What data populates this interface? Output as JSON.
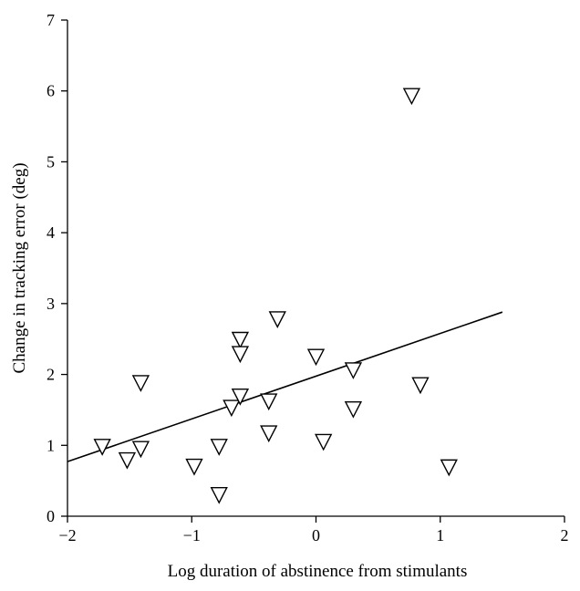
{
  "chart_data": {
    "type": "scatter",
    "title": "",
    "xlabel": "Log duration of abstinence from stimulants",
    "ylabel": "Change in tracking error (deg)",
    "xlim": [
      -2,
      2
    ],
    "ylim": [
      0,
      7
    ],
    "xticks": [
      -2,
      -1,
      0,
      1,
      2
    ],
    "xtick_labels": [
      "−2",
      "−1",
      "0",
      "1",
      "2"
    ],
    "yticks": [
      0,
      1,
      2,
      3,
      4,
      5,
      6,
      7
    ],
    "ytick_labels": [
      "0",
      "1",
      "2",
      "3",
      "4",
      "5",
      "6",
      "7"
    ],
    "grid": false,
    "marker": "down-triangle",
    "points": [
      {
        "x": -1.72,
        "y": 0.98
      },
      {
        "x": -1.52,
        "y": 0.79
      },
      {
        "x": -1.41,
        "y": 0.95
      },
      {
        "x": -1.41,
        "y": 1.88
      },
      {
        "x": -0.98,
        "y": 0.7
      },
      {
        "x": -0.78,
        "y": 0.98
      },
      {
        "x": -0.78,
        "y": 0.3
      },
      {
        "x": -0.68,
        "y": 1.53
      },
      {
        "x": -0.61,
        "y": 2.49
      },
      {
        "x": -0.61,
        "y": 2.29
      },
      {
        "x": -0.61,
        "y": 1.69
      },
      {
        "x": -0.38,
        "y": 1.62
      },
      {
        "x": -0.38,
        "y": 1.17
      },
      {
        "x": -0.31,
        "y": 2.78
      },
      {
        "x": 0.0,
        "y": 2.25
      },
      {
        "x": 0.06,
        "y": 1.05
      },
      {
        "x": 0.3,
        "y": 2.06
      },
      {
        "x": 0.3,
        "y": 1.51
      },
      {
        "x": 0.77,
        "y": 5.93
      },
      {
        "x": 0.84,
        "y": 1.85
      },
      {
        "x": 1.07,
        "y": 0.69
      }
    ],
    "fit_line": {
      "x": [
        -2,
        1.5
      ],
      "y": [
        0.77,
        2.88
      ]
    }
  }
}
